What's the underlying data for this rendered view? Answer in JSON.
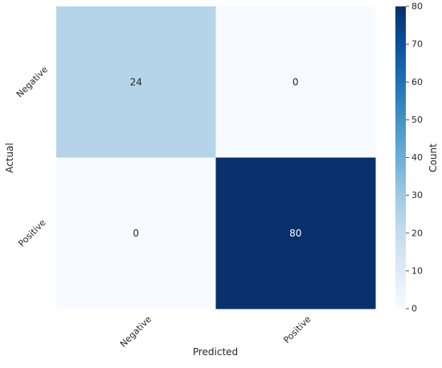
{
  "chart_data": {
    "type": "heatmap",
    "title": "",
    "xlabel": "Predicted",
    "ylabel": "Actual",
    "x_categories": [
      "Negative",
      "Positive"
    ],
    "y_categories": [
      "Negative",
      "Positive"
    ],
    "values": [
      [
        24,
        0
      ],
      [
        0,
        80
      ]
    ],
    "colorbar": {
      "label": "Count",
      "range": [
        0,
        80
      ],
      "ticks": [
        0,
        10,
        20,
        30,
        40,
        50,
        60,
        70,
        80
      ],
      "colormap": "Blues",
      "stops": [
        "#f7fbff",
        "#deebf7",
        "#c6dbef",
        "#9ecae1",
        "#6baed6",
        "#4292c6",
        "#2171b5",
        "#08519c",
        "#08306b"
      ]
    }
  }
}
